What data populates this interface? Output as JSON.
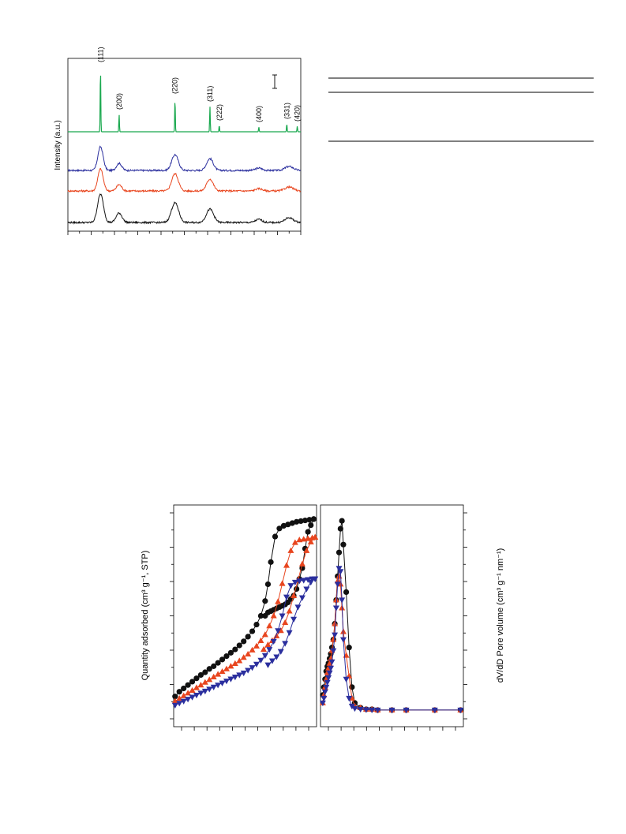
{
  "colors": {
    "reference": "#19a84e",
    "blue": "#2b2f9e",
    "red": "#e8451e",
    "black": "#111111"
  },
  "chart_data": [
    {
      "type": "line",
      "ylabel": "Intensity (a.u.)",
      "xlim": [
        0,
        100
      ],
      "reference_peaks": [
        {
          "x": 14,
          "h": 82,
          "label": "(111)"
        },
        {
          "x": 22,
          "h": 22,
          "label": "(200)"
        },
        {
          "x": 46,
          "h": 42,
          "label": "(220)"
        },
        {
          "x": 61,
          "h": 32,
          "label": "(311)"
        },
        {
          "x": 65,
          "h": 8,
          "label": "(222)"
        },
        {
          "x": 82,
          "h": 6,
          "label": "(400)"
        },
        {
          "x": 94,
          "h": 10,
          "label": "(331)"
        },
        {
          "x": 98.5,
          "h": 7,
          "label": "(420)"
        }
      ],
      "series": [
        {
          "color": "blue",
          "offset": 77,
          "peaks": [
            {
              "x": 14,
              "h": 30,
              "w": 1.6
            },
            {
              "x": 22,
              "h": 9,
              "w": 1.6
            },
            {
              "x": 46,
              "h": 20,
              "w": 2
            },
            {
              "x": 61,
              "h": 15,
              "w": 2
            },
            {
              "x": 82,
              "h": 3,
              "w": 2
            },
            {
              "x": 95,
              "h": 5,
              "w": 2.5
            }
          ]
        },
        {
          "color": "red",
          "offset": 51,
          "peaks": [
            {
              "x": 14,
              "h": 28,
              "w": 1.6
            },
            {
              "x": 22,
              "h": 8,
              "w": 1.6
            },
            {
              "x": 46,
              "h": 22,
              "w": 2
            },
            {
              "x": 61,
              "h": 15,
              "w": 2
            },
            {
              "x": 82,
              "h": 3,
              "w": 2
            },
            {
              "x": 95,
              "h": 5,
              "w": 2.5
            }
          ]
        },
        {
          "color": "black",
          "offset": 11,
          "peaks": [
            {
              "x": 14,
              "h": 36,
              "w": 1.8
            },
            {
              "x": 22,
              "h": 12,
              "w": 1.8
            },
            {
              "x": 46,
              "h": 25,
              "w": 2.2
            },
            {
              "x": 61,
              "h": 17,
              "w": 2.2
            },
            {
              "x": 82,
              "h": 4,
              "w": 2
            },
            {
              "x": 95,
              "h": 6,
              "w": 2.5
            }
          ]
        }
      ]
    },
    {
      "type": "line",
      "ylabel": "Quantity adsorbed (cm³ g⁻¹, STP)",
      "xlim": [
        0,
        1
      ],
      "ylim": [
        0,
        330
      ],
      "series": [
        {
          "color": "black",
          "marker": "circle",
          "x": [
            0.01,
            0.04,
            0.07,
            0.1,
            0.13,
            0.16,
            0.19,
            0.22,
            0.25,
            0.28,
            0.31,
            0.34,
            0.37,
            0.4,
            0.43,
            0.46,
            0.49,
            0.52,
            0.55,
            0.58,
            0.61,
            0.64,
            0.66,
            0.68,
            0.71,
            0.74,
            0.77,
            0.8,
            0.83,
            0.86,
            0.89,
            0.92,
            0.95,
            0.98
          ],
          "y": [
            45,
            52,
            57,
            62,
            67,
            72,
            77,
            81,
            86,
            90,
            95,
            100,
            105,
            110,
            115,
            121,
            127,
            134,
            142,
            152,
            165,
            187,
            212,
            245,
            283,
            295,
            299,
            301,
            303,
            305,
            306,
            307,
            308,
            309
          ],
          "desorption_x": [
            0.98,
            0.96,
            0.94,
            0.92,
            0.9,
            0.88,
            0.86,
            0.84,
            0.82,
            0.8,
            0.78,
            0.76,
            0.74,
            0.72,
            0.7,
            0.68,
            0.66,
            0.64
          ],
          "desorption_y": [
            309,
            300,
            290,
            265,
            236,
            220,
            205,
            195,
            190,
            185,
            182,
            180,
            178,
            176,
            174,
            172,
            170,
            165
          ]
        },
        {
          "color": "red",
          "marker": "triangle-up",
          "x": [
            0.01,
            0.04,
            0.07,
            0.1,
            0.13,
            0.16,
            0.19,
            0.22,
            0.25,
            0.28,
            0.31,
            0.34,
            0.37,
            0.4,
            0.43,
            0.46,
            0.49,
            0.52,
            0.55,
            0.58,
            0.61,
            0.64,
            0.67,
            0.7,
            0.73,
            0.76,
            0.79,
            0.82,
            0.85,
            0.88,
            0.91,
            0.94,
            0.97,
            0.99
          ],
          "y": [
            38,
            42,
            46,
            50,
            54,
            58,
            62,
            66,
            70,
            74,
            78,
            82,
            86,
            90,
            94,
            98,
            103,
            108,
            114,
            120,
            128,
            137,
            150,
            165,
            186,
            213,
            240,
            262,
            274,
            278,
            279,
            280,
            281,
            282
          ],
          "desorption_x": [
            0.99,
            0.96,
            0.93,
            0.9,
            0.87,
            0.84,
            0.81,
            0.78,
            0.75,
            0.72,
            0.69,
            0.66,
            0.63
          ],
          "desorption_y": [
            282,
            275,
            262,
            242,
            218,
            195,
            172,
            155,
            143,
            135,
            128,
            122,
            115
          ]
        },
        {
          "color": "blue",
          "marker": "triangle-down",
          "x": [
            0.01,
            0.04,
            0.07,
            0.1,
            0.13,
            0.16,
            0.19,
            0.22,
            0.25,
            0.28,
            0.31,
            0.34,
            0.37,
            0.4,
            0.43,
            0.46,
            0.49,
            0.52,
            0.55,
            0.58,
            0.61,
            0.64,
            0.67,
            0.7,
            0.73,
            0.76,
            0.79,
            0.82,
            0.85,
            0.88,
            0.91,
            0.94,
            0.97,
            0.99
          ],
          "y": [
            32,
            35,
            38,
            41,
            44,
            47,
            50,
            53,
            56,
            59,
            62,
            65,
            68,
            71,
            74,
            77,
            80,
            84,
            88,
            93,
            99,
            106,
            115,
            127,
            143,
            165,
            193,
            210,
            215,
            217,
            218,
            219,
            220,
            220
          ],
          "desorption_x": [
            0.99,
            0.96,
            0.93,
            0.9,
            0.87,
            0.84,
            0.81,
            0.78,
            0.75,
            0.72,
            0.69,
            0.66
          ],
          "desorption_y": [
            220,
            215,
            205,
            192,
            178,
            160,
            140,
            124,
            112,
            104,
            98,
            92
          ]
        }
      ]
    },
    {
      "type": "line",
      "ylabel": "dV/dD Pore volume (cm³ g⁻¹ nm⁻¹)",
      "xlim": [
        0,
        50
      ],
      "ylim": [
        -0.1,
        1.3
      ],
      "series": [
        {
          "color": "black",
          "marker": "circle",
          "x": [
            0.8,
            1.2,
            1.6,
            2.0,
            2.4,
            2.8,
            3.2,
            3.6,
            4.0,
            4.5,
            5.0,
            5.5,
            6.0,
            6.5,
            7.0,
            7.5,
            8.0,
            9.0,
            10,
            11,
            12,
            14,
            16,
            18,
            20,
            25,
            30,
            40,
            49
          ],
          "y": [
            0.1,
            0.15,
            0.2,
            0.25,
            0.28,
            0.3,
            0.33,
            0.36,
            0.4,
            0.45,
            0.55,
            0.7,
            0.85,
            1.0,
            1.15,
            1.2,
            1.05,
            0.75,
            0.4,
            0.15,
            0.05,
            0.02,
            0.01,
            0.01,
            0.005,
            0.005,
            0.005,
            0.005,
            0.005
          ]
        },
        {
          "color": "red",
          "marker": "triangle-up",
          "x": [
            0.8,
            1.2,
            1.6,
            2.0,
            2.4,
            2.8,
            3.2,
            3.6,
            4.0,
            4.5,
            5.0,
            5.5,
            6.0,
            6.5,
            7.0,
            7.5,
            8.0,
            9.0,
            10,
            11,
            12,
            14,
            16,
            18,
            20,
            25,
            30,
            40,
            49
          ],
          "y": [
            0.05,
            0.1,
            0.15,
            0.2,
            0.24,
            0.27,
            0.3,
            0.33,
            0.38,
            0.45,
            0.55,
            0.7,
            0.82,
            0.85,
            0.8,
            0.65,
            0.5,
            0.35,
            0.22,
            0.08,
            0.03,
            0.02,
            0.01,
            0.01,
            0.005,
            0.005,
            0.005,
            0.005,
            0.005
          ]
        },
        {
          "color": "blue",
          "marker": "triangle-down",
          "x": [
            0.8,
            1.2,
            1.6,
            2.0,
            2.4,
            2.8,
            3.2,
            3.6,
            4.0,
            4.5,
            5.0,
            5.5,
            6.0,
            6.5,
            7.0,
            7.5,
            8.0,
            9.0,
            10,
            11,
            12,
            14,
            16,
            18,
            20,
            25,
            30,
            40,
            49
          ],
          "y": [
            0.05,
            0.08,
            0.12,
            0.15,
            0.18,
            0.21,
            0.24,
            0.27,
            0.31,
            0.38,
            0.48,
            0.65,
            0.8,
            0.9,
            0.88,
            0.7,
            0.45,
            0.2,
            0.08,
            0.03,
            0.015,
            0.01,
            0.008,
            0.006,
            0.005,
            0.005,
            0.005,
            0.005,
            0.005
          ]
        }
      ]
    }
  ]
}
